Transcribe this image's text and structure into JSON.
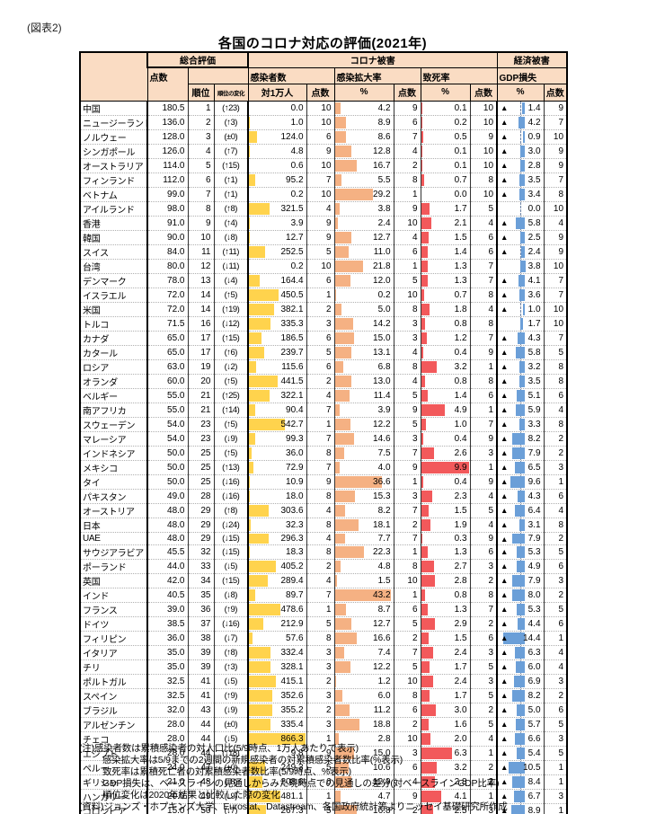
{
  "figure_label": "(図表2)",
  "title": "各国のコロナ対応の評価(2021年)",
  "header": {
    "overall": "総合評価",
    "covid_damage": "コロナ被害",
    "econ_damage": "経済被害",
    "score": "点数",
    "rank": "順位",
    "rank_change": "順位の変化",
    "infections": "感染者数",
    "per_10k": "対1万人",
    "spread_rate": "感染拡大率",
    "percent": "%",
    "fatality_rate": "致死率",
    "gdp_loss": "GDP損失",
    "negative_marker": "▲"
  },
  "colors": {
    "header_bg": "#FADCC3",
    "bar_infections": "#FFD34D",
    "bar_spread": "#F5B183",
    "bar_fatality": "#F2595B",
    "bar_gdp": "#6B9FD8"
  },
  "rows": [
    {
      "country": "中国",
      "score": "180.5",
      "rank": "1",
      "change": "(↑23)",
      "inf": "0.0",
      "inf_s": "10",
      "spr": "4.2",
      "spr_s": "9",
      "fat": "0.1",
      "fat_s": "10",
      "gdp": "-1.4",
      "gdp_s": "9"
    },
    {
      "country": "ニュージーランド",
      "score": "136.0",
      "rank": "2",
      "change": "(↑3)",
      "inf": "1.0",
      "inf_s": "10",
      "spr": "8.9",
      "spr_s": "6",
      "fat": "0.2",
      "fat_s": "10",
      "gdp": "-4.2",
      "gdp_s": "7"
    },
    {
      "country": "ノルウェー",
      "score": "128.0",
      "rank": "3",
      "change": "(±0)",
      "inf": "124.0",
      "inf_s": "6",
      "spr": "8.6",
      "spr_s": "7",
      "fat": "0.5",
      "fat_s": "9",
      "gdp": "-0.9",
      "gdp_s": "10"
    },
    {
      "country": "シンガポール",
      "score": "126.0",
      "rank": "4",
      "change": "(↑7)",
      "inf": "4.8",
      "inf_s": "9",
      "spr": "12.8",
      "spr_s": "4",
      "fat": "0.1",
      "fat_s": "10",
      "gdp": "-3.0",
      "gdp_s": "9"
    },
    {
      "country": "オーストラリア",
      "score": "114.0",
      "rank": "5",
      "change": "(↑15)",
      "inf": "0.6",
      "inf_s": "10",
      "spr": "16.7",
      "spr_s": "2",
      "fat": "0.1",
      "fat_s": "10",
      "gdp": "-2.8",
      "gdp_s": "9"
    },
    {
      "country": "フィンランド",
      "score": "112.0",
      "rank": "6",
      "change": "(↑1)",
      "inf": "95.2",
      "inf_s": "7",
      "spr": "5.5",
      "spr_s": "8",
      "fat": "0.7",
      "fat_s": "8",
      "gdp": "-3.5",
      "gdp_s": "7"
    },
    {
      "country": "ベトナム",
      "score": "99.0",
      "rank": "7",
      "change": "(↑1)",
      "inf": "0.2",
      "inf_s": "10",
      "spr": "29.2",
      "spr_s": "1",
      "fat": "0.0",
      "fat_s": "10",
      "gdp": "-3.4",
      "gdp_s": "8"
    },
    {
      "country": "アイルランド",
      "score": "98.0",
      "rank": "8",
      "change": "(↑8)",
      "inf": "321.5",
      "inf_s": "4",
      "spr": "3.8",
      "spr_s": "9",
      "fat": "1.7",
      "fat_s": "5",
      "gdp": "0.0",
      "gdp_s": "10"
    },
    {
      "country": "香港",
      "score": "91.0",
      "rank": "9",
      "change": "(↑4)",
      "inf": "3.9",
      "inf_s": "9",
      "spr": "2.4",
      "spr_s": "10",
      "fat": "2.1",
      "fat_s": "4",
      "gdp": "-5.8",
      "gdp_s": "4"
    },
    {
      "country": "韓国",
      "score": "90.0",
      "rank": "10",
      "change": "(↓8)",
      "inf": "12.7",
      "inf_s": "9",
      "spr": "12.7",
      "spr_s": "4",
      "fat": "1.5",
      "fat_s": "6",
      "gdp": "-2.5",
      "gdp_s": "9"
    },
    {
      "country": "スイス",
      "score": "84.0",
      "rank": "11",
      "change": "(↑11)",
      "inf": "252.5",
      "inf_s": "5",
      "spr": "11.0",
      "spr_s": "6",
      "fat": "1.4",
      "fat_s": "6",
      "gdp": "-2.4",
      "gdp_s": "9"
    },
    {
      "country": "台湾",
      "score": "80.0",
      "rank": "12",
      "change": "(↓11)",
      "inf": "0.2",
      "inf_s": "10",
      "spr": "21.8",
      "spr_s": "1",
      "fat": "1.3",
      "fat_s": "7",
      "gdp": "3.8",
      "gdp_s": "10"
    },
    {
      "country": "デンマーク",
      "score": "78.0",
      "rank": "13",
      "change": "(↓4)",
      "inf": "164.4",
      "inf_s": "6",
      "spr": "12.0",
      "spr_s": "5",
      "fat": "1.3",
      "fat_s": "7",
      "gdp": "-4.1",
      "gdp_s": "7"
    },
    {
      "country": "イスラエル",
      "score": "72.0",
      "rank": "14",
      "change": "(↑5)",
      "inf": "450.5",
      "inf_s": "1",
      "spr": "0.2",
      "spr_s": "10",
      "fat": "0.7",
      "fat_s": "8",
      "gdp": "-3.6",
      "gdp_s": "7"
    },
    {
      "country": "米国",
      "score": "72.0",
      "rank": "14",
      "change": "(↑19)",
      "inf": "382.1",
      "inf_s": "2",
      "spr": "5.0",
      "spr_s": "8",
      "fat": "1.8",
      "fat_s": "4",
      "gdp": "-1.0",
      "gdp_s": "10"
    },
    {
      "country": "トルコ",
      "score": "71.5",
      "rank": "16",
      "change": "(↓12)",
      "inf": "335.3",
      "inf_s": "3",
      "spr": "14.2",
      "spr_s": "3",
      "fat": "0.8",
      "fat_s": "8",
      "gdp": "1.7",
      "gdp_s": "10"
    },
    {
      "country": "カナダ",
      "score": "65.0",
      "rank": "17",
      "change": "(↑15)",
      "inf": "186.5",
      "inf_s": "6",
      "spr": "15.0",
      "spr_s": "3",
      "fat": "1.2",
      "fat_s": "7",
      "gdp": "-4.3",
      "gdp_s": "7"
    },
    {
      "country": "カタール",
      "score": "65.0",
      "rank": "17",
      "change": "(↑6)",
      "inf": "239.7",
      "inf_s": "5",
      "spr": "13.1",
      "spr_s": "4",
      "fat": "0.4",
      "fat_s": "9",
      "gdp": "-5.8",
      "gdp_s": "5"
    },
    {
      "country": "ロシア",
      "score": "63.0",
      "rank": "19",
      "change": "(↓2)",
      "inf": "115.6",
      "inf_s": "6",
      "spr": "6.8",
      "spr_s": "8",
      "fat": "3.2",
      "fat_s": "1",
      "gdp": "-3.2",
      "gdp_s": "8"
    },
    {
      "country": "オランダ",
      "score": "60.0",
      "rank": "20",
      "change": "(↑5)",
      "inf": "441.5",
      "inf_s": "2",
      "spr": "13.0",
      "spr_s": "4",
      "fat": "0.8",
      "fat_s": "8",
      "gdp": "-3.5",
      "gdp_s": "8"
    },
    {
      "country": "ベルギー",
      "score": "55.0",
      "rank": "21",
      "change": "(↑25)",
      "inf": "322.1",
      "inf_s": "4",
      "spr": "11.4",
      "spr_s": "5",
      "fat": "1.4",
      "fat_s": "6",
      "gdp": "-5.1",
      "gdp_s": "6"
    },
    {
      "country": "南アフリカ",
      "score": "55.0",
      "rank": "21",
      "change": "(↑14)",
      "inf": "90.4",
      "inf_s": "7",
      "spr": "3.9",
      "spr_s": "9",
      "fat": "4.9",
      "fat_s": "1",
      "gdp": "-5.9",
      "gdp_s": "4"
    },
    {
      "country": "スウェーデン",
      "score": "54.0",
      "rank": "23",
      "change": "(↑5)",
      "inf": "542.7",
      "inf_s": "1",
      "spr": "12.2",
      "spr_s": "5",
      "fat": "1.0",
      "fat_s": "7",
      "gdp": "-3.3",
      "gdp_s": "8"
    },
    {
      "country": "マレーシア",
      "score": "54.0",
      "rank": "23",
      "change": "(↓9)",
      "inf": "99.3",
      "inf_s": "7",
      "spr": "14.6",
      "spr_s": "3",
      "fat": "0.4",
      "fat_s": "9",
      "gdp": "-8.2",
      "gdp_s": "2"
    },
    {
      "country": "インドネシア",
      "score": "50.0",
      "rank": "25",
      "change": "(↑5)",
      "inf": "36.0",
      "inf_s": "8",
      "spr": "7.5",
      "spr_s": "7",
      "fat": "2.6",
      "fat_s": "3",
      "gdp": "-7.9",
      "gdp_s": "2"
    },
    {
      "country": "メキシコ",
      "score": "50.0",
      "rank": "25",
      "change": "(↑13)",
      "inf": "72.9",
      "inf_s": "7",
      "spr": "4.0",
      "spr_s": "9",
      "fat": "9.9",
      "fat_s": "1",
      "gdp": "-6.5",
      "gdp_s": "3"
    },
    {
      "country": "タイ",
      "score": "50.0",
      "rank": "25",
      "change": "(↓16)",
      "inf": "10.9",
      "inf_s": "9",
      "spr": "36.6",
      "spr_s": "1",
      "fat": "0.4",
      "fat_s": "9",
      "gdp": "-9.6",
      "gdp_s": "1"
    },
    {
      "country": "パキスタン",
      "score": "49.0",
      "rank": "28",
      "change": "(↓16)",
      "inf": "18.0",
      "inf_s": "8",
      "spr": "15.3",
      "spr_s": "3",
      "fat": "2.3",
      "fat_s": "4",
      "gdp": "-4.3",
      "gdp_s": "6"
    },
    {
      "country": "オーストリア",
      "score": "48.0",
      "rank": "29",
      "change": "(↑8)",
      "inf": "303.6",
      "inf_s": "4",
      "spr": "8.2",
      "spr_s": "7",
      "fat": "1.5",
      "fat_s": "5",
      "gdp": "-6.4",
      "gdp_s": "4"
    },
    {
      "country": "日本",
      "score": "48.0",
      "rank": "29",
      "change": "(↓24)",
      "inf": "32.3",
      "inf_s": "8",
      "spr": "18.1",
      "spr_s": "2",
      "fat": "1.9",
      "fat_s": "4",
      "gdp": "-3.1",
      "gdp_s": "8"
    },
    {
      "country": "UAE",
      "score": "48.0",
      "rank": "29",
      "change": "(↓15)",
      "inf": "296.3",
      "inf_s": "4",
      "spr": "7.7",
      "spr_s": "7",
      "fat": "0.3",
      "fat_s": "9",
      "gdp": "-7.9",
      "gdp_s": "2"
    },
    {
      "country": "サウジアラビア",
      "score": "45.5",
      "rank": "32",
      "change": "(↓15)",
      "inf": "18.3",
      "inf_s": "8",
      "spr": "22.3",
      "spr_s": "1",
      "fat": "1.3",
      "fat_s": "6",
      "gdp": "-5.3",
      "gdp_s": "5"
    },
    {
      "country": "ポーランド",
      "score": "44.0",
      "rank": "33",
      "change": "(↓5)",
      "inf": "405.2",
      "inf_s": "2",
      "spr": "4.8",
      "spr_s": "8",
      "fat": "2.7",
      "fat_s": "3",
      "gdp": "-4.9",
      "gdp_s": "6"
    },
    {
      "country": "英国",
      "score": "42.0",
      "rank": "34",
      "change": "(↑15)",
      "inf": "289.4",
      "inf_s": "4",
      "spr": "1.5",
      "spr_s": "10",
      "fat": "2.8",
      "fat_s": "2",
      "gdp": "-7.9",
      "gdp_s": "3"
    },
    {
      "country": "インド",
      "score": "40.5",
      "rank": "35",
      "change": "(↓8)",
      "inf": "89.7",
      "inf_s": "7",
      "spr": "43.2",
      "spr_s": "1",
      "fat": "0.8",
      "fat_s": "8",
      "gdp": "-8.0",
      "gdp_s": "2"
    },
    {
      "country": "フランス",
      "score": "39.0",
      "rank": "36",
      "change": "(↑9)",
      "inf": "478.6",
      "inf_s": "1",
      "spr": "8.7",
      "spr_s": "6",
      "fat": "1.3",
      "fat_s": "7",
      "gdp": "-5.3",
      "gdp_s": "5"
    },
    {
      "country": "ドイツ",
      "score": "38.5",
      "rank": "37",
      "change": "(↓16)",
      "inf": "212.9",
      "inf_s": "5",
      "spr": "12.7",
      "spr_s": "5",
      "fat": "2.9",
      "fat_s": "2",
      "gdp": "-4.4",
      "gdp_s": "6"
    },
    {
      "country": "フィリピン",
      "score": "36.0",
      "rank": "38",
      "change": "(↓7)",
      "inf": "57.6",
      "inf_s": "8",
      "spr": "16.6",
      "spr_s": "2",
      "fat": "1.5",
      "fat_s": "6",
      "gdp": "-14.4",
      "gdp_s": "1"
    },
    {
      "country": "イタリア",
      "score": "35.0",
      "rank": "39",
      "change": "(↑8)",
      "inf": "332.4",
      "inf_s": "3",
      "spr": "7.4",
      "spr_s": "7",
      "fat": "2.4",
      "fat_s": "3",
      "gdp": "-6.3",
      "gdp_s": "4"
    },
    {
      "country": "チリ",
      "score": "35.0",
      "rank": "39",
      "change": "(↑3)",
      "inf": "328.1",
      "inf_s": "3",
      "spr": "12.2",
      "spr_s": "5",
      "fat": "1.7",
      "fat_s": "5",
      "gdp": "-6.0",
      "gdp_s": "4"
    },
    {
      "country": "ポルトガル",
      "score": "32.5",
      "rank": "41",
      "change": "(↓5)",
      "inf": "415.1",
      "inf_s": "2",
      "spr": "1.2",
      "spr_s": "10",
      "fat": "2.4",
      "fat_s": "3",
      "gdp": "-6.9",
      "gdp_s": "3"
    },
    {
      "country": "スペイン",
      "score": "32.5",
      "rank": "41",
      "change": "(↑9)",
      "inf": "352.6",
      "inf_s": "3",
      "spr": "6.0",
      "spr_s": "8",
      "fat": "1.7",
      "fat_s": "5",
      "gdp": "-8.2",
      "gdp_s": "2"
    },
    {
      "country": "ブラジル",
      "score": "32.0",
      "rank": "43",
      "change": "(↓9)",
      "inf": "355.2",
      "inf_s": "2",
      "spr": "11.2",
      "spr_s": "6",
      "fat": "3.0",
      "fat_s": "2",
      "gdp": "-5.0",
      "gdp_s": "6"
    },
    {
      "country": "アルゼンチン",
      "score": "28.0",
      "rank": "44",
      "change": "(±0)",
      "inf": "335.4",
      "inf_s": "3",
      "spr": "18.8",
      "spr_s": "2",
      "fat": "1.6",
      "fat_s": "5",
      "gdp": "-5.7",
      "gdp_s": "5"
    },
    {
      "country": "チェコ",
      "score": "28.0",
      "rank": "44",
      "change": "(↓5)",
      "inf": "866.3",
      "inf_s": "1",
      "spr": "2.8",
      "spr_s": "10",
      "fat": "2.0",
      "fat_s": "4",
      "gdp": "-6.6",
      "gdp_s": "3"
    },
    {
      "country": "エジプト",
      "score": "28.0",
      "rank": "44",
      "change": "(↓18)",
      "inf": "9.8",
      "inf_s": "9",
      "spr": "15.0",
      "spr_s": "3",
      "fat": "6.3",
      "fat_s": "1",
      "gdp": "-5.4",
      "gdp_s": "5"
    },
    {
      "country": "ペルー",
      "score": "24.0",
      "rank": "47",
      "change": "(±0)",
      "inf": "249.3",
      "inf_s": "5",
      "spr": "10.6",
      "spr_s": "6",
      "fat": "3.2",
      "fat_s": "2",
      "gdp": "-10.5",
      "gdp_s": "1"
    },
    {
      "country": "ギリシャ",
      "score": "21.0",
      "rank": "48",
      "change": "(↓8)",
      "inf": "208.6",
      "inf_s": "6",
      "spr": "12.9",
      "spr_s": "4",
      "fat": "2.8",
      "fat_s": "2",
      "gdp": "-8.4",
      "gdp_s": "1"
    },
    {
      "country": "ハンガリー",
      "score": "20.0",
      "rank": "49",
      "change": "(↓9)",
      "inf": "481.1",
      "inf_s": "1",
      "spr": "4.7",
      "spr_s": "9",
      "fat": "4.1",
      "fat_s": "1",
      "gdp": "-6.7",
      "gdp_s": "3"
    },
    {
      "country": "コロンビア",
      "score": "15.0",
      "rank": "50",
      "change": "(↓7)",
      "inf": "267.3",
      "inf_s": "5",
      "spr": "16.8",
      "spr_s": "2",
      "fat": "2.5",
      "fat_s": "3",
      "gdp": "-8.9",
      "gdp_s": "1"
    }
  ],
  "notes": [
    "(注)感染者数は累積感染者の対人口比(5/9時点、1万人あたりで表示)",
    "感染拡大率は5/9までの2週間の新規感染者の対累積感染者数比率(%表示)",
    "致死率は累積死亡者の対累積感染者数比率(5/9時点、%表示)",
    "GDP損失は、ベースラインの見通しからみた現時点での見通しの差分(対ベースラインGDP比率)",
    "順位変化は2020年結果と比較した際の変化"
  ],
  "source": "(資料)ジョンズ・ホプキンズ大学、Eurostat、Datastream、各国政府統計等よりニッセイ基礎研究所作成"
}
